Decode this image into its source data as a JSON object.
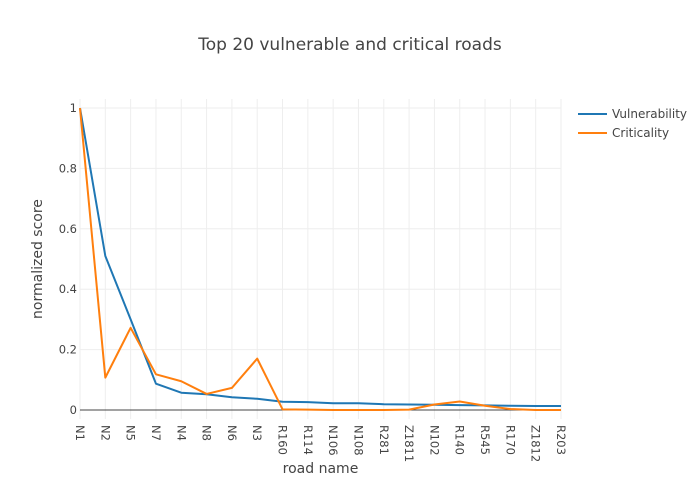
{
  "chart_data": {
    "type": "line",
    "title": "Top 20 vulnerable and critical roads",
    "xlabel": "road name",
    "ylabel": "normalized score",
    "categories": [
      "N1",
      "N2",
      "N5",
      "N7",
      "N4",
      "N8",
      "N6",
      "N3",
      "R160",
      "R114",
      "N106",
      "N108",
      "R281",
      "Z1811",
      "N102",
      "R140",
      "R545",
      "R170",
      "Z1812",
      "R203"
    ],
    "ylim": [
      -0.03,
      1.03
    ],
    "yticks": [
      0,
      0.2,
      0.4,
      0.6,
      0.8,
      1
    ],
    "ytick_labels": [
      "0",
      "0.2",
      "0.4",
      "0.6",
      "0.8",
      "1"
    ],
    "grid": true,
    "legend_position": "top-right",
    "series": [
      {
        "name": "Vulnerability",
        "color": "#1f77b4",
        "values": [
          1.0,
          0.51,
          0.3,
          0.087,
          0.057,
          0.052,
          0.042,
          0.037,
          0.027,
          0.026,
          0.022,
          0.022,
          0.019,
          0.018,
          0.017,
          0.016,
          0.015,
          0.014,
          0.013,
          0.013
        ]
      },
      {
        "name": "Criticality",
        "color": "#ff7f0e",
        "values": [
          1.0,
          0.107,
          0.272,
          0.118,
          0.095,
          0.053,
          0.073,
          0.17,
          0.002,
          0.001,
          0.0,
          0.0,
          0.0,
          0.001,
          0.018,
          0.028,
          0.014,
          0.003,
          0.0,
          0.0
        ]
      }
    ]
  }
}
